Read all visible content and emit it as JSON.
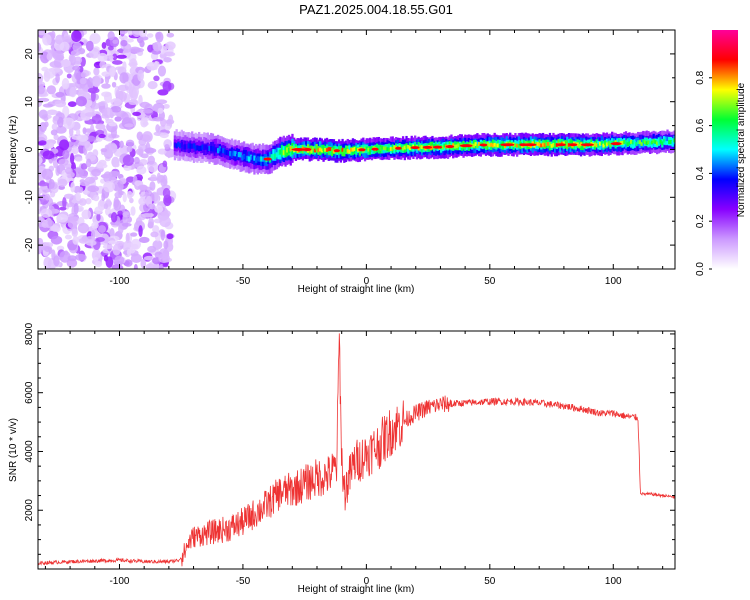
{
  "title": "PAZ1.2025.004.18.55.G01",
  "colors": {
    "snr_line": "#ee3333",
    "axis": "#000000",
    "colormap": [
      "#ffffff",
      "#cc99ff",
      "#8800ff",
      "#0000ff",
      "#00ffff",
      "#00ff33",
      "#ffff00",
      "#ff0000",
      "#ff0099"
    ]
  },
  "chart_data": [
    {
      "type": "heatmap",
      "xlabel": "Height of straight line (km)",
      "ylabel": "Frequency (Hz)",
      "xlim": [
        -133,
        125
      ],
      "ylim": [
        -25,
        25
      ],
      "xticks": [
        -100,
        -50,
        0,
        50,
        100
      ],
      "yticks": [
        -20,
        -10,
        0,
        10,
        20
      ],
      "colorbar": {
        "label": "Normalized spectral amplitude",
        "range": [
          0,
          1
        ],
        "ticks": [
          "0.0",
          "0.2",
          "0.4",
          "0.6",
          "0.8"
        ]
      },
      "noise_region_x": [
        -133,
        -79
      ],
      "ridge": {
        "x": [
          -78,
          -70,
          -60,
          -55,
          -50,
          -45,
          -40,
          -35,
          -30,
          -20,
          -10,
          0,
          10,
          20,
          30,
          40,
          50,
          60,
          70,
          80,
          90,
          100,
          110,
          120,
          125
        ],
        "freq_hz": [
          1.0,
          0.5,
          0.0,
          -1.0,
          -1.5,
          -2.0,
          -2.0,
          -0.5,
          0.0,
          0.0,
          -0.3,
          0.0,
          0.2,
          0.4,
          0.5,
          0.8,
          1.0,
          1.0,
          1.0,
          1.0,
          1.0,
          1.2,
          1.4,
          1.6,
          1.8
        ],
        "amplitude": [
          0.35,
          0.35,
          0.4,
          0.4,
          0.45,
          0.45,
          0.5,
          0.65,
          0.75,
          0.75,
          0.75,
          0.7,
          0.7,
          0.7,
          0.7,
          0.7,
          0.7,
          0.7,
          0.75,
          0.75,
          0.7,
          0.65,
          0.6,
          0.6,
          0.55
        ]
      }
    },
    {
      "type": "line",
      "xlabel": "Height of straight line (km)",
      "ylabel": "SNR (10 * v/v)",
      "xlim": [
        -133,
        125
      ],
      "ylim": [
        0,
        8100
      ],
      "xticks": [
        -100,
        -50,
        0,
        50,
        100
      ],
      "yticks": [
        2000,
        4000,
        6000,
        8000
      ],
      "series": [
        {
          "x": [
            -133,
            -120,
            -100,
            -90,
            -80,
            -76,
            -74,
            -72,
            -70,
            -65,
            -60,
            -55,
            -50,
            -45,
            -40,
            -35,
            -30,
            -25,
            -20,
            -15,
            -12,
            -11,
            -10,
            -9,
            -5,
            0,
            5,
            10,
            13,
            15,
            18,
            20,
            25,
            30,
            40,
            50,
            60,
            70,
            80,
            90,
            95,
            100,
            105,
            110,
            111,
            112,
            115,
            120,
            125
          ],
          "y": [
            200,
            250,
            300,
            250,
            250,
            300,
            500,
            900,
            1100,
            1200,
            1300,
            1400,
            1600,
            1900,
            2200,
            2600,
            2700,
            2900,
            3100,
            3200,
            3500,
            8000,
            3800,
            2600,
            3600,
            3900,
            4200,
            4700,
            4900,
            5000,
            5200,
            5300,
            5500,
            5600,
            5650,
            5700,
            5700,
            5650,
            5550,
            5400,
            5300,
            5300,
            5200,
            5150,
            2600,
            2550,
            2550,
            2500,
            2450
          ]
        }
      ]
    }
  ]
}
